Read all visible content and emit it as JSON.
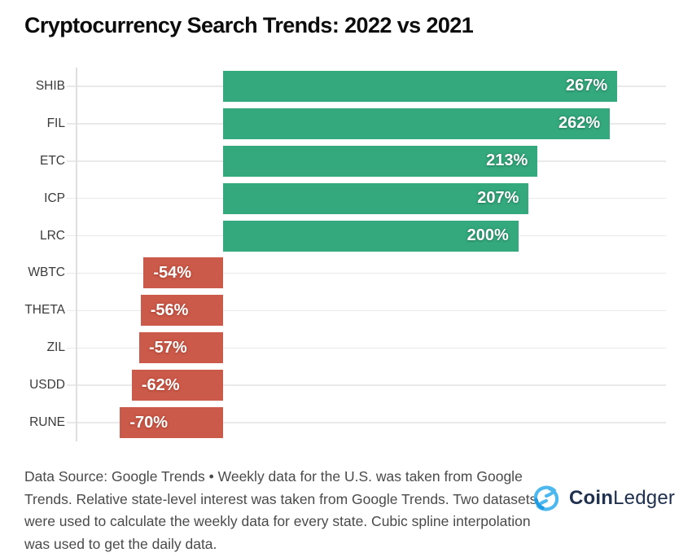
{
  "title": "Cryptocurrency Search Trends: 2022 vs 2021",
  "chart_data": {
    "type": "bar",
    "orientation": "horizontal",
    "title": "Cryptocurrency Search Trends: 2022 vs 2021",
    "categories": [
      "SHIB",
      "FIL",
      "ETC",
      "ICP",
      "LRC",
      "WBTC",
      "THETA",
      "ZIL",
      "USDD",
      "RUNE"
    ],
    "values": [
      267,
      262,
      213,
      207,
      200,
      -54,
      -56,
      -57,
      -62,
      -70
    ],
    "value_labels": [
      "267%",
      "262%",
      "213%",
      "207%",
      "200%",
      "-54%",
      "-56%",
      "-57%",
      "-62%",
      "-70%"
    ],
    "xlabel": "",
    "ylabel": "",
    "xlim": [
      -100,
      300
    ],
    "grid": true,
    "legend": "none",
    "positive_color": "#35a97e",
    "negative_color": "#cc5a4a"
  },
  "footer": {
    "note": "Data Source: Google Trends • Weekly data for the U.S. was taken from Google Trends. Relative state-level interest was taken from Google Trends. Two datasets were used to calculate the weekly data for every state. Cubic spline interpolation was used to get the daily data."
  },
  "logo": {
    "brand_bold": "Coin",
    "brand_regular": "Ledger",
    "icon_name": "coinledger-knot-icon",
    "navy": "#20304f",
    "blue_light": "#4db8f0",
    "blue_dark": "#1d9be4"
  }
}
